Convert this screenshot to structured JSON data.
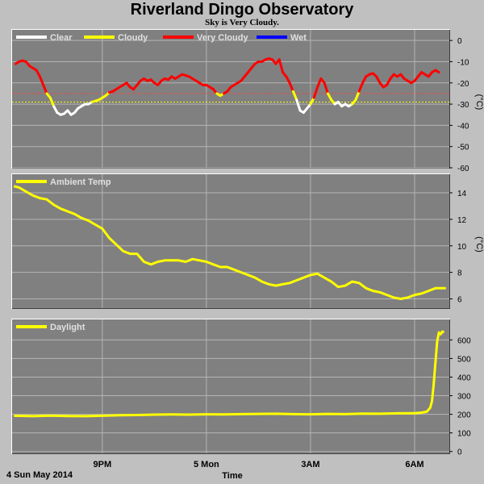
{
  "header": {
    "title": "Riverland Dingo Observatory",
    "subtitle": "Sky is Very Cloudy."
  },
  "colors": {
    "background": "#c0c0c0",
    "plot_background": "#808080",
    "grid": "#b4b4b4",
    "legend_text": "#e0e0e0",
    "clear": "#ffffff",
    "cloudy": "#ffff00",
    "very_cloudy": "#ff0000",
    "wet": "#0000ff",
    "threshold_red": "#ff4040",
    "threshold_yellow": "#ffff00"
  },
  "footer": {
    "date_label": "4 Sun May 2014",
    "x_title": "Time"
  },
  "chart_data": [
    {
      "id": "sky",
      "type": "line",
      "x_tick_labels": [
        "9PM",
        "5 Mon",
        "3AM",
        "6AM"
      ],
      "x_ticks": [
        21.0,
        24.0,
        27.0,
        30.0
      ],
      "xlim": [
        18.4,
        31.0
      ],
      "y_unit": "(°C)",
      "ylim": [
        -60,
        5
      ],
      "y_ticks": [
        0,
        -10,
        -20,
        -30,
        -40,
        -50,
        -60
      ],
      "y_tick_labels": [
        "0",
        "-10",
        "-20",
        "-30",
        "-40",
        "-50",
        "-60"
      ],
      "thresholds": [
        {
          "value": -25,
          "color": "#ff4040"
        },
        {
          "value": -29,
          "color": "#ffff00"
        }
      ],
      "series": [
        {
          "name": "Clear",
          "color": "#ffffff",
          "points": []
        },
        {
          "name": "Cloudy",
          "color": "#ffff00",
          "points": []
        },
        {
          "name": "Very Cloudy",
          "color": "#ff0000",
          "points": []
        },
        {
          "name": "Wet",
          "color": "#0000ff",
          "points": []
        }
      ],
      "points": [
        [
          18.5,
          -11
        ],
        [
          18.6,
          -10
        ],
        [
          18.7,
          -9.5
        ],
        [
          18.8,
          -10
        ],
        [
          18.9,
          -12
        ],
        [
          19.0,
          -13
        ],
        [
          19.1,
          -14
        ],
        [
          19.2,
          -17
        ],
        [
          19.3,
          -21
        ],
        [
          19.4,
          -25
        ],
        [
          19.5,
          -27
        ],
        [
          19.6,
          -31
        ],
        [
          19.7,
          -34
        ],
        [
          19.8,
          -35
        ],
        [
          19.9,
          -34.5
        ],
        [
          20.0,
          -33
        ],
        [
          20.1,
          -35
        ],
        [
          20.2,
          -34
        ],
        [
          20.3,
          -32
        ],
        [
          20.4,
          -31
        ],
        [
          20.5,
          -30
        ],
        [
          20.6,
          -30
        ],
        [
          20.7,
          -29
        ],
        [
          20.8,
          -28.5
        ],
        [
          20.9,
          -28
        ],
        [
          21.0,
          -27
        ],
        [
          21.1,
          -26
        ],
        [
          21.2,
          -24.5
        ],
        [
          21.3,
          -24
        ],
        [
          21.4,
          -23
        ],
        [
          21.5,
          -22
        ],
        [
          21.6,
          -21
        ],
        [
          21.7,
          -20
        ],
        [
          21.8,
          -22
        ],
        [
          21.9,
          -23
        ],
        [
          22.0,
          -21
        ],
        [
          22.1,
          -19
        ],
        [
          22.2,
          -18
        ],
        [
          22.3,
          -19
        ],
        [
          22.4,
          -18.5
        ],
        [
          22.5,
          -20
        ],
        [
          22.6,
          -21
        ],
        [
          22.7,
          -19
        ],
        [
          22.8,
          -18
        ],
        [
          22.9,
          -18.5
        ],
        [
          23.0,
          -17
        ],
        [
          23.1,
          -18
        ],
        [
          23.2,
          -17
        ],
        [
          23.3,
          -16
        ],
        [
          23.4,
          -16.5
        ],
        [
          23.5,
          -17
        ],
        [
          23.6,
          -18
        ],
        [
          23.7,
          -19
        ],
        [
          23.8,
          -20
        ],
        [
          23.9,
          -21
        ],
        [
          24.0,
          -21
        ],
        [
          24.1,
          -22
        ],
        [
          24.2,
          -23
        ],
        [
          24.3,
          -25
        ],
        [
          24.4,
          -26
        ],
        [
          24.5,
          -25
        ],
        [
          24.6,
          -24
        ],
        [
          24.7,
          -22
        ],
        [
          24.8,
          -21
        ],
        [
          24.9,
          -20
        ],
        [
          25.0,
          -19
        ],
        [
          25.1,
          -17
        ],
        [
          25.2,
          -15
        ],
        [
          25.3,
          -13
        ],
        [
          25.4,
          -11
        ],
        [
          25.5,
          -10
        ],
        [
          25.6,
          -10
        ],
        [
          25.7,
          -9
        ],
        [
          25.8,
          -8.5
        ],
        [
          25.9,
          -9
        ],
        [
          26.0,
          -11
        ],
        [
          26.1,
          -9
        ],
        [
          26.2,
          -15
        ],
        [
          26.3,
          -17
        ],
        [
          26.4,
          -20
        ],
        [
          26.5,
          -24
        ],
        [
          26.6,
          -28
        ],
        [
          26.7,
          -33
        ],
        [
          26.8,
          -34
        ],
        [
          26.9,
          -32
        ],
        [
          27.0,
          -30
        ],
        [
          27.1,
          -27
        ],
        [
          27.2,
          -22
        ],
        [
          27.3,
          -18
        ],
        [
          27.4,
          -20
        ],
        [
          27.5,
          -25
        ],
        [
          27.6,
          -28
        ],
        [
          27.7,
          -30
        ],
        [
          27.8,
          -29
        ],
        [
          27.9,
          -31
        ],
        [
          28.0,
          -30
        ],
        [
          28.1,
          -31
        ],
        [
          28.2,
          -30
        ],
        [
          28.3,
          -28
        ],
        [
          28.4,
          -24
        ],
        [
          28.5,
          -20
        ],
        [
          28.6,
          -17
        ],
        [
          28.7,
          -16
        ],
        [
          28.8,
          -15.5
        ],
        [
          28.9,
          -17
        ],
        [
          29.0,
          -20
        ],
        [
          29.1,
          -22
        ],
        [
          29.2,
          -21
        ],
        [
          29.3,
          -18
        ],
        [
          29.4,
          -16
        ],
        [
          29.5,
          -17
        ],
        [
          29.6,
          -16
        ],
        [
          29.7,
          -18
        ],
        [
          29.8,
          -19
        ],
        [
          29.9,
          -20
        ],
        [
          30.0,
          -19
        ],
        [
          30.1,
          -17
        ],
        [
          30.2,
          -15
        ],
        [
          30.3,
          -16
        ],
        [
          30.4,
          -17
        ],
        [
          30.5,
          -15
        ],
        [
          30.6,
          -14
        ],
        [
          30.7,
          -15
        ]
      ]
    },
    {
      "id": "ambient",
      "type": "line",
      "xlim": [
        18.4,
        31.0
      ],
      "y_unit": "(°C)",
      "ylim": [
        5.3,
        15.4
      ],
      "y_ticks": [
        14,
        12,
        10,
        8,
        6
      ],
      "y_tick_labels": [
        "14",
        "12",
        "10",
        "8",
        "6"
      ],
      "series": [
        {
          "name": "Ambient Temp",
          "color": "#ffff00",
          "points": [
            [
              18.45,
              14.5
            ],
            [
              18.6,
              14.4
            ],
            [
              18.8,
              14.1
            ],
            [
              19.0,
              13.8
            ],
            [
              19.2,
              13.6
            ],
            [
              19.4,
              13.5
            ],
            [
              19.6,
              13.1
            ],
            [
              19.8,
              12.8
            ],
            [
              20.0,
              12.6
            ],
            [
              20.2,
              12.4
            ],
            [
              20.4,
              12.1
            ],
            [
              20.6,
              11.9
            ],
            [
              20.8,
              11.6
            ],
            [
              21.0,
              11.3
            ],
            [
              21.2,
              10.6
            ],
            [
              21.4,
              10.1
            ],
            [
              21.6,
              9.6
            ],
            [
              21.8,
              9.4
            ],
            [
              22.0,
              9.4
            ],
            [
              22.2,
              8.8
            ],
            [
              22.4,
              8.6
            ],
            [
              22.6,
              8.8
            ],
            [
              22.8,
              8.9
            ],
            [
              23.0,
              8.9
            ],
            [
              23.2,
              8.9
            ],
            [
              23.4,
              8.8
            ],
            [
              23.6,
              9.0
            ],
            [
              23.8,
              8.9
            ],
            [
              24.0,
              8.8
            ],
            [
              24.2,
              8.6
            ],
            [
              24.4,
              8.4
            ],
            [
              24.6,
              8.4
            ],
            [
              24.8,
              8.2
            ],
            [
              25.0,
              8.0
            ],
            [
              25.2,
              7.8
            ],
            [
              25.4,
              7.6
            ],
            [
              25.6,
              7.3
            ],
            [
              25.8,
              7.1
            ],
            [
              26.0,
              7.0
            ],
            [
              26.2,
              7.1
            ],
            [
              26.4,
              7.2
            ],
            [
              26.6,
              7.4
            ],
            [
              26.8,
              7.6
            ],
            [
              27.0,
              7.8
            ],
            [
              27.2,
              7.9
            ],
            [
              27.4,
              7.6
            ],
            [
              27.6,
              7.3
            ],
            [
              27.8,
              6.9
            ],
            [
              28.0,
              7.0
            ],
            [
              28.2,
              7.3
            ],
            [
              28.4,
              7.2
            ],
            [
              28.6,
              6.8
            ],
            [
              28.8,
              6.6
            ],
            [
              29.0,
              6.5
            ],
            [
              29.2,
              6.3
            ],
            [
              29.4,
              6.1
            ],
            [
              29.6,
              6.0
            ],
            [
              29.8,
              6.1
            ],
            [
              30.0,
              6.3
            ],
            [
              30.2,
              6.4
            ],
            [
              30.4,
              6.6
            ],
            [
              30.6,
              6.8
            ],
            [
              30.8,
              6.8
            ],
            [
              30.9,
              6.8
            ]
          ]
        }
      ]
    },
    {
      "id": "daylight",
      "type": "line",
      "xlim": [
        18.4,
        31.0
      ],
      "y_unit": "",
      "ylim": [
        -10,
        710
      ],
      "y_ticks": [
        600,
        500,
        400,
        300,
        200,
        100,
        0
      ],
      "y_tick_labels": [
        "600",
        "500",
        "400",
        "300",
        "200",
        "100",
        "0"
      ],
      "series": [
        {
          "name": "Daylight",
          "color": "#ffff00",
          "points": [
            [
              18.45,
              192
            ],
            [
              19.0,
              190
            ],
            [
              19.5,
              193
            ],
            [
              20.0,
              191
            ],
            [
              20.5,
              190
            ],
            [
              21.0,
              192
            ],
            [
              21.5,
              195
            ],
            [
              22.0,
              196
            ],
            [
              22.5,
              198
            ],
            [
              23.0,
              199
            ],
            [
              23.5,
              198
            ],
            [
              24.0,
              200
            ],
            [
              24.5,
              199
            ],
            [
              25.0,
              201
            ],
            [
              25.5,
              202
            ],
            [
              26.0,
              203
            ],
            [
              26.5,
              201
            ],
            [
              27.0,
              200
            ],
            [
              27.5,
              202
            ],
            [
              28.0,
              201
            ],
            [
              28.5,
              204
            ],
            [
              29.0,
              203
            ],
            [
              29.5,
              205
            ],
            [
              30.0,
              206
            ],
            [
              30.2,
              209
            ],
            [
              30.35,
              214
            ],
            [
              30.45,
              235
            ],
            [
              30.5,
              270
            ],
            [
              30.55,
              360
            ],
            [
              30.6,
              480
            ],
            [
              30.65,
              590
            ],
            [
              30.7,
              640
            ],
            [
              30.75,
              630
            ],
            [
              30.8,
              645
            ],
            [
              30.85,
              640
            ]
          ]
        }
      ]
    }
  ]
}
